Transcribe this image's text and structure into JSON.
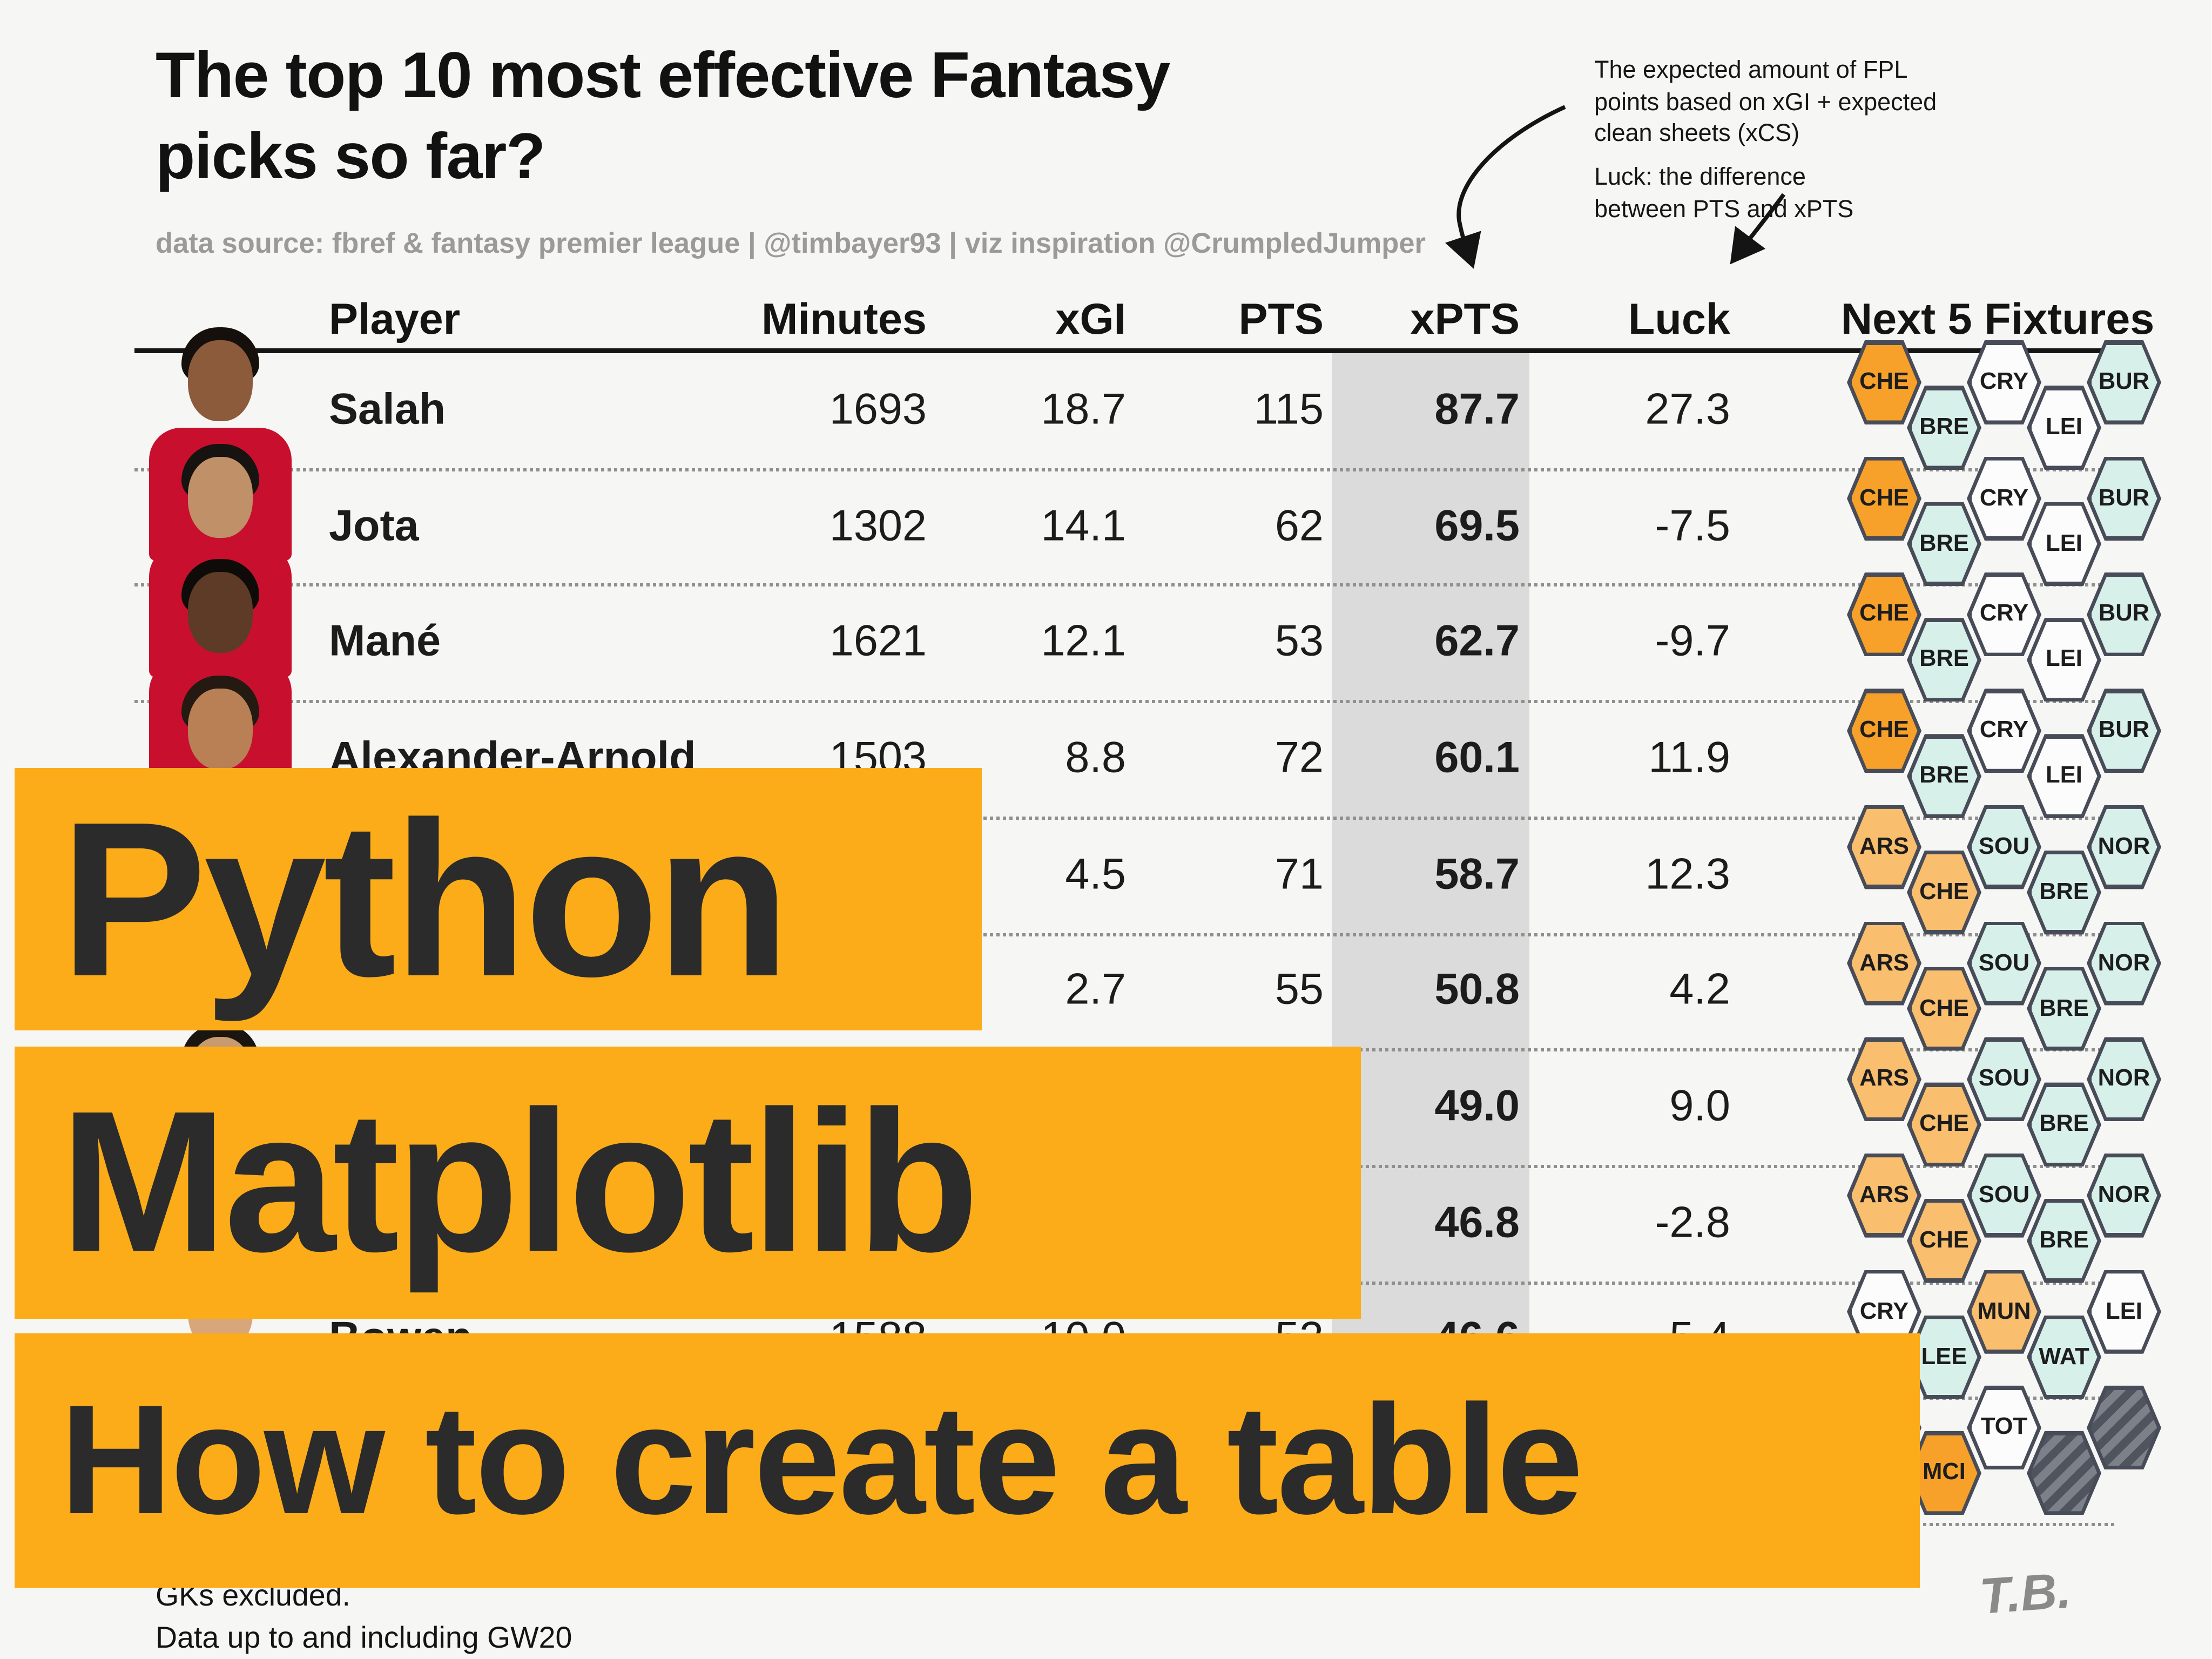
{
  "title": {
    "line1": "The top 10 most effective Fantasy",
    "line2": "picks so far?"
  },
  "subtitle": "data source: fbref & fantasy premier league | @timbayer93 | viz inspiration @CrumpledJumper",
  "annotations": {
    "xpts_note_lines": [
      "The expected amount of FPL",
      "points based on xGI + expected",
      "clean sheets (xCS)"
    ],
    "luck_note_lines": [
      "Luck: the difference",
      "between PTS and xPTS"
    ]
  },
  "banners": {
    "banner1": "Python",
    "banner2": "Matplotlib",
    "banner3": "How to create a table",
    "background": "#FBAC18"
  },
  "footnotes": {
    "line1": "GKs excluded.",
    "line2": "Data up to and including GW20"
  },
  "signature": "T.B.",
  "chart_data": {
    "type": "table",
    "title": "The top 10 most effective Fantasy picks so far?",
    "columns": [
      "Player",
      "Minutes",
      "xGI",
      "PTS",
      "xPTS",
      "Luck",
      "Next 5 Fixtures"
    ],
    "highlight_column": "xPTS",
    "highlight_color": "#DBDBDB",
    "styles": {
      "orange": "#F7A12B",
      "light_orange": "#F9BE6E",
      "mint": "#D7F1EA",
      "white": "#FCFCFC",
      "hatched": "hatched"
    },
    "rows": [
      {
        "player": "Salah",
        "minutes": "1693",
        "xgi": "18.7",
        "pts": "115",
        "xpts": "87.7",
        "luck": "27.3",
        "photo": {
          "kit": "#C8102E",
          "skin": "#8B5B3B",
          "hair": "#15100C"
        },
        "fixtures": [
          {
            "code": "CHE",
            "style": "orange"
          },
          {
            "code": "BRE",
            "style": "mint"
          },
          {
            "code": "CRY",
            "style": "white"
          },
          {
            "code": "LEI",
            "style": "white"
          },
          {
            "code": "BUR",
            "style": "mint"
          }
        ]
      },
      {
        "player": "Jota",
        "minutes": "1302",
        "xgi": "14.1",
        "pts": "62",
        "xpts": "69.5",
        "luck": "-7.5",
        "photo": {
          "kit": "#C8102E",
          "skin": "#C09068",
          "hair": "#171310"
        },
        "fixtures": [
          {
            "code": "CHE",
            "style": "orange"
          },
          {
            "code": "BRE",
            "style": "mint"
          },
          {
            "code": "CRY",
            "style": "white"
          },
          {
            "code": "LEI",
            "style": "white"
          },
          {
            "code": "BUR",
            "style": "mint"
          }
        ]
      },
      {
        "player": "Mané",
        "minutes": "1621",
        "xgi": "12.1",
        "pts": "53",
        "xpts": "62.7",
        "luck": "-9.7",
        "photo": {
          "kit": "#C8102E",
          "skin": "#5D3B27",
          "hair": "#0E0B09"
        },
        "fixtures": [
          {
            "code": "CHE",
            "style": "orange"
          },
          {
            "code": "BRE",
            "style": "mint"
          },
          {
            "code": "CRY",
            "style": "white"
          },
          {
            "code": "LEI",
            "style": "white"
          },
          {
            "code": "BUR",
            "style": "mint"
          }
        ]
      },
      {
        "player": "Alexander-Arnold",
        "minutes": "1503",
        "xgi": "8.8",
        "pts": "72",
        "xpts": "60.1",
        "luck": "11.9",
        "photo": {
          "kit": "#C8102E",
          "skin": "#B98055",
          "hair": "#241A12"
        },
        "fixtures": [
          {
            "code": "CHE",
            "style": "orange"
          },
          {
            "code": "BRE",
            "style": "mint"
          },
          {
            "code": "CRY",
            "style": "white"
          },
          {
            "code": "LEI",
            "style": "white"
          },
          {
            "code": "BUR",
            "style": "mint"
          }
        ]
      },
      {
        "player": "",
        "minutes": "",
        "xgi": "4.5",
        "pts": "71",
        "xpts": "58.7",
        "luck": "12.3",
        "photo": null,
        "fixtures": [
          {
            "code": "ARS",
            "style": "light_orange"
          },
          {
            "code": "CHE",
            "style": "light_orange"
          },
          {
            "code": "SOU",
            "style": "mint"
          },
          {
            "code": "BRE",
            "style": "mint"
          },
          {
            "code": "NOR",
            "style": "mint"
          }
        ]
      },
      {
        "player": "",
        "minutes": "",
        "xgi": "2.7",
        "pts": "55",
        "xpts": "50.8",
        "luck": "4.2",
        "photo": null,
        "fixtures": [
          {
            "code": "ARS",
            "style": "light_orange"
          },
          {
            "code": "CHE",
            "style": "light_orange"
          },
          {
            "code": "SOU",
            "style": "mint"
          },
          {
            "code": "BRE",
            "style": "mint"
          },
          {
            "code": "NOR",
            "style": "mint"
          }
        ]
      },
      {
        "player": "",
        "minutes": "",
        "xgi": "",
        "pts": "",
        "xpts": "49.0",
        "luck": "9.0",
        "photo": {
          "kit": "#6CABDD",
          "skin": "#C89A6F",
          "hair": "#1A1511"
        },
        "fixtures": [
          {
            "code": "ARS",
            "style": "light_orange"
          },
          {
            "code": "CHE",
            "style": "light_orange"
          },
          {
            "code": "SOU",
            "style": "mint"
          },
          {
            "code": "BRE",
            "style": "mint"
          },
          {
            "code": "NOR",
            "style": "mint"
          }
        ]
      },
      {
        "player": "",
        "minutes": "",
        "xgi": "",
        "pts": "",
        "xpts": "46.8",
        "luck": "-2.8",
        "photo": null,
        "fixtures": [
          {
            "code": "ARS",
            "style": "light_orange"
          },
          {
            "code": "CHE",
            "style": "light_orange"
          },
          {
            "code": "SOU",
            "style": "mint"
          },
          {
            "code": "BRE",
            "style": "mint"
          },
          {
            "code": "NOR",
            "style": "mint"
          }
        ]
      },
      {
        "player": "Bowen",
        "minutes": "1588",
        "xgi": "10.0",
        "pts": "52",
        "xpts": "46.6",
        "luck": "5.4",
        "photo": {
          "kit": "#7A263A",
          "skin": "#D7A67B",
          "hair": "#3A2B1E"
        },
        "fixtures": [
          {
            "code": "CRY",
            "style": "white"
          },
          {
            "code": "LEE",
            "style": "mint"
          },
          {
            "code": "MUN",
            "style": "light_orange"
          },
          {
            "code": "WAT",
            "style": "mint"
          },
          {
            "code": "LEI",
            "style": "white"
          }
        ]
      },
      {
        "player": "",
        "minutes": "",
        "xgi": "",
        "pts": "",
        "xpts": "",
        "luck": "",
        "photo": null,
        "fixtures": [
          {
            "code": "",
            "style": "light_orange"
          },
          {
            "code": "MCI",
            "style": "orange"
          },
          {
            "code": "TOT",
            "style": "white"
          },
          {
            "code": "",
            "style": "hatched"
          },
          {
            "code": "",
            "style": "hatched"
          }
        ]
      }
    ]
  }
}
